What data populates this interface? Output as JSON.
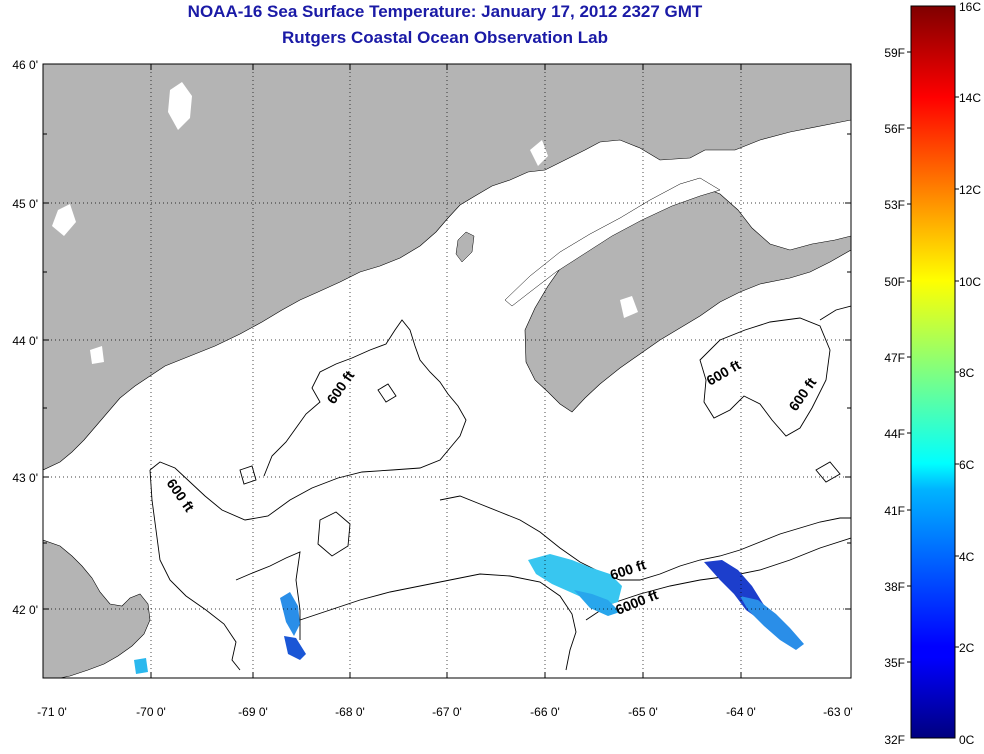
{
  "title": "NOAA-16 Sea Surface Temperature:  January 17, 2012 2327 GMT",
  "subtitle": "Rutgers Coastal Ocean Observation Lab",
  "map": {
    "lon_range": [
      -71,
      -63
    ],
    "lat_range": [
      41.5,
      46
    ],
    "lon_ticks": [
      "-71 0'",
      "-70 0'",
      "-69 0'",
      "-68 0'",
      "-67 0'",
      "-66 0'",
      "-65 0'",
      "-64 0'",
      "-63 0'"
    ],
    "lat_ticks": [
      "46 0'",
      "45 0'",
      "44 0'",
      "43 0'",
      "42 0'"
    ],
    "grid": "dotted",
    "land_color": "#b4b4b4",
    "no_data_color": "#ffffff",
    "contour_labels": [
      "600 ft",
      "600 ft",
      "600 ft",
      "600 ft",
      "600 ft",
      "6000 ft"
    ]
  },
  "colorbar": {
    "celsius_labels": [
      "16C",
      "14C",
      "12C",
      "10C",
      "8C",
      "6C",
      "4C",
      "2C",
      "0C"
    ],
    "fahrenheit_labels": [
      "59F",
      "56F",
      "53F",
      "50F",
      "47F",
      "44F",
      "41F",
      "38F",
      "35F",
      "32F"
    ],
    "colormap": "jet"
  }
}
